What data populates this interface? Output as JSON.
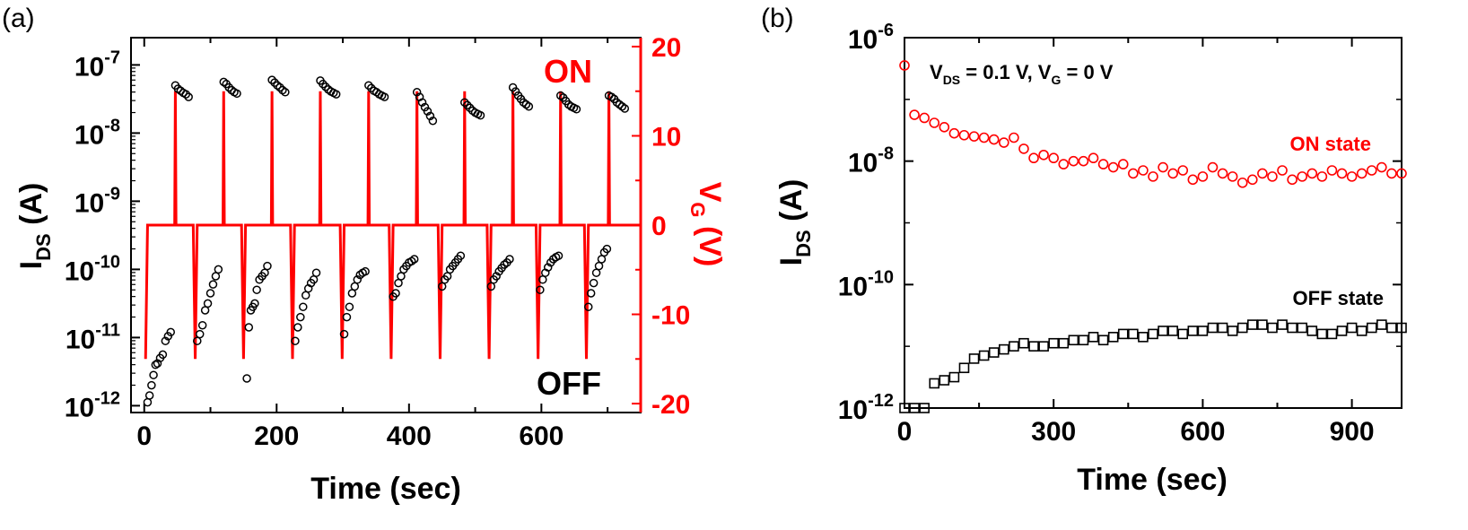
{
  "colors": {
    "on": "#ff0000",
    "off": "#000000",
    "axis": "#000000",
    "vg": "#ff0000"
  },
  "chart_data": [
    {
      "type": "scatter",
      "panel_label": "(a)",
      "xlabel": "Time (sec)",
      "ylabel": "I",
      "ylabel_sub": "DS",
      "ylabel_unit": " (A)",
      "y2label": "V",
      "y2label_sub": "G",
      "y2label_unit": " (V)",
      "xlim": [
        -20,
        750
      ],
      "ylim_log10": [
        -12.1,
        -6.6
      ],
      "y_scale": "log",
      "y2lim": [
        -21,
        21
      ],
      "xticks": [
        0,
        200,
        400,
        600
      ],
      "xtick_labels": [
        "0",
        "200",
        "400",
        "600"
      ],
      "yticks_exp": [
        -7,
        -8,
        -9,
        -10,
        -11,
        -12
      ],
      "ytick_base": "10",
      "ytick_exp_labels": [
        "-7",
        "-8",
        "-9",
        "-10",
        "-11",
        "-12"
      ],
      "y2ticks": [
        20,
        10,
        0,
        -10,
        -20
      ],
      "y2tick_labels": [
        "20",
        "10",
        "0",
        "-10",
        "-20"
      ],
      "annotations": {
        "on": "ON",
        "off": "OFF"
      },
      "cycle_starts": [
        0,
        75,
        148,
        222,
        297,
        371,
        445,
        519,
        593,
        666
      ],
      "on_times": [
        47,
        120,
        193,
        266,
        339,
        412,
        484,
        557,
        629,
        702
      ],
      "vg_levels": {
        "low": -15,
        "rest": 0,
        "high": 15
      },
      "on_series": [
        {
          "t": [
            47,
            51,
            55,
            59,
            63,
            67
          ],
          "log_i": [
            -7.3,
            -7.35,
            -7.38,
            -7.41,
            -7.43,
            -7.47
          ]
        },
        {
          "t": [
            120,
            124,
            128,
            132,
            136,
            140
          ],
          "log_i": [
            -7.25,
            -7.28,
            -7.33,
            -7.37,
            -7.4,
            -7.42
          ]
        },
        {
          "t": [
            193,
            197,
            201,
            205,
            209,
            213
          ],
          "log_i": [
            -7.22,
            -7.26,
            -7.3,
            -7.33,
            -7.37,
            -7.4
          ]
        },
        {
          "t": [
            266,
            270,
            274,
            278,
            282,
            286,
            290
          ],
          "log_i": [
            -7.23,
            -7.28,
            -7.32,
            -7.36,
            -7.39,
            -7.41,
            -7.43
          ]
        },
        {
          "t": [
            339,
            343,
            347,
            351,
            355,
            359,
            363
          ],
          "log_i": [
            -7.3,
            -7.34,
            -7.38,
            -7.4,
            -7.43,
            -7.45,
            -7.47
          ]
        },
        {
          "t": [
            412,
            416,
            420,
            424,
            428,
            432,
            436
          ],
          "log_i": [
            -7.4,
            -7.47,
            -7.55,
            -7.62,
            -7.68,
            -7.75,
            -7.82
          ]
        },
        {
          "t": [
            484,
            488,
            492,
            496,
            500,
            504,
            508
          ],
          "log_i": [
            -7.55,
            -7.59,
            -7.63,
            -7.67,
            -7.7,
            -7.72,
            -7.74
          ]
        },
        {
          "t": [
            557,
            561,
            565,
            569,
            573,
            577,
            581
          ],
          "log_i": [
            -7.33,
            -7.39,
            -7.45,
            -7.5,
            -7.55,
            -7.58,
            -7.61
          ]
        },
        {
          "t": [
            629,
            633,
            637,
            641,
            645,
            649,
            653
          ],
          "log_i": [
            -7.45,
            -7.48,
            -7.53,
            -7.58,
            -7.61,
            -7.63,
            -7.65
          ]
        },
        {
          "t": [
            702,
            706,
            710,
            714,
            718,
            722,
            726
          ],
          "log_i": [
            -7.45,
            -7.47,
            -7.5,
            -7.55,
            -7.58,
            -7.61,
            -7.64
          ]
        }
      ],
      "off_series": [
        {
          "t": [
            5,
            8,
            11,
            14,
            17,
            20,
            24,
            28,
            32,
            36,
            40
          ],
          "log_i": [
            -11.95,
            -11.85,
            -11.7,
            -11.55,
            -11.4,
            -11.38,
            -11.3,
            -11.25,
            -11.05,
            -10.98,
            -10.92
          ]
        },
        {
          "t": [
            80,
            84,
            88,
            92,
            96,
            100,
            104,
            108,
            112
          ],
          "log_i": [
            -11.05,
            -10.95,
            -10.82,
            -10.6,
            -10.5,
            -10.35,
            -10.22,
            -10.1,
            -10.0
          ]
        },
        {
          "t": [
            155,
            158,
            161,
            164,
            167,
            170,
            174,
            178,
            182,
            186
          ],
          "log_i": [
            -11.6,
            -10.85,
            -10.6,
            -10.55,
            -10.5,
            -10.3,
            -10.15,
            -10.1,
            -10.05,
            -9.95
          ]
        },
        {
          "t": [
            228,
            232,
            236,
            240,
            244,
            248,
            252,
            256,
            260
          ],
          "log_i": [
            -11.05,
            -10.85,
            -10.7,
            -10.55,
            -10.38,
            -10.28,
            -10.2,
            -10.15,
            -10.05
          ]
        },
        {
          "t": [
            302,
            306,
            310,
            314,
            318,
            322,
            326,
            330,
            334
          ],
          "log_i": [
            -10.95,
            -10.7,
            -10.55,
            -10.35,
            -10.25,
            -10.15,
            -10.08,
            -10.05,
            -10.03
          ]
        },
        {
          "t": [
            376,
            380,
            384,
            388,
            392,
            396,
            400,
            404,
            408
          ],
          "log_i": [
            -10.4,
            -10.35,
            -10.2,
            -10.1,
            -10.0,
            -9.95,
            -9.9,
            -9.88,
            -9.85
          ]
        },
        {
          "t": [
            450,
            454,
            458,
            462,
            466,
            470,
            474,
            478
          ],
          "log_i": [
            -10.25,
            -10.15,
            -10.1,
            -10.0,
            -9.95,
            -9.9,
            -9.85,
            -9.8
          ]
        },
        {
          "t": [
            524,
            528,
            532,
            536,
            540,
            544,
            548,
            552
          ],
          "log_i": [
            -10.25,
            -10.15,
            -10.1,
            -10.03,
            -9.98,
            -9.93,
            -9.9,
            -9.85
          ]
        },
        {
          "t": [
            598,
            602,
            606,
            610,
            614,
            618,
            622,
            626
          ],
          "log_i": [
            -10.3,
            -10.15,
            -10.05,
            -9.97,
            -9.9,
            -9.85,
            -9.82,
            -9.8
          ]
        },
        {
          "t": [
            671,
            675,
            679,
            683,
            687,
            691,
            695,
            699
          ],
          "log_i": [
            -10.55,
            -10.35,
            -10.2,
            -10.05,
            -9.95,
            -9.85,
            -9.75,
            -9.7
          ]
        }
      ]
    },
    {
      "type": "scatter",
      "panel_label": "(b)",
      "xlabel": "Time (sec)",
      "ylabel": "I",
      "ylabel_sub": "DS",
      "ylabel_unit": " (A)",
      "xlim": [
        0,
        1000
      ],
      "ylim_log10": [
        -12,
        -6
      ],
      "y_scale": "log",
      "xticks": [
        0,
        300,
        600,
        900
      ],
      "xtick_labels": [
        "0",
        "300",
        "600",
        "900"
      ],
      "yticks_exp": [
        -6,
        -8,
        -10,
        -12
      ],
      "ytick_base": "10",
      "ytick_exp_labels": [
        "-6",
        "-8",
        "-10",
        "-12"
      ],
      "condition": {
        "v1": "V",
        "v1_sub": "DS",
        "v1_rest": " = 0.1 V, ",
        "v2": "V",
        "v2_sub": "G",
        "v2_rest": " = 0 V"
      },
      "series": [
        {
          "name": "ON state",
          "x": [
            0,
            20,
            40,
            60,
            80,
            100,
            120,
            140,
            160,
            180,
            200,
            220,
            240,
            260,
            280,
            300,
            320,
            340,
            360,
            380,
            400,
            420,
            440,
            460,
            480,
            500,
            520,
            540,
            560,
            580,
            600,
            620,
            640,
            660,
            680,
            700,
            720,
            740,
            760,
            780,
            800,
            820,
            840,
            860,
            880,
            900,
            920,
            940,
            960,
            980,
            1000
          ],
          "log_i": [
            -6.45,
            -7.25,
            -7.3,
            -7.38,
            -7.45,
            -7.55,
            -7.58,
            -7.6,
            -7.62,
            -7.65,
            -7.7,
            -7.62,
            -7.8,
            -7.95,
            -7.9,
            -7.95,
            -8.05,
            -8.0,
            -8.0,
            -7.95,
            -8.05,
            -8.1,
            -8.05,
            -8.2,
            -8.15,
            -8.25,
            -8.1,
            -8.2,
            -8.15,
            -8.3,
            -8.25,
            -8.1,
            -8.2,
            -8.25,
            -8.35,
            -8.3,
            -8.2,
            -8.25,
            -8.15,
            -8.3,
            -8.25,
            -8.2,
            -8.25,
            -8.15,
            -8.2,
            -8.25,
            -8.2,
            -8.15,
            -8.1,
            -8.2,
            -8.2
          ]
        },
        {
          "name": "OFF state",
          "x": [
            0,
            20,
            40,
            60,
            80,
            100,
            120,
            140,
            160,
            180,
            200,
            220,
            240,
            260,
            280,
            300,
            320,
            340,
            360,
            380,
            400,
            420,
            440,
            460,
            480,
            500,
            520,
            540,
            560,
            580,
            600,
            620,
            640,
            660,
            680,
            700,
            720,
            740,
            760,
            780,
            800,
            820,
            840,
            860,
            880,
            900,
            920,
            940,
            960,
            980,
            1000
          ],
          "log_i": [
            -12.0,
            -12.0,
            -12.0,
            -11.6,
            -11.55,
            -11.5,
            -11.35,
            -11.2,
            -11.15,
            -11.1,
            -11.05,
            -11.0,
            -10.95,
            -11.0,
            -11.0,
            -10.95,
            -10.95,
            -10.9,
            -10.9,
            -10.85,
            -10.9,
            -10.85,
            -10.8,
            -10.8,
            -10.85,
            -10.8,
            -10.75,
            -10.75,
            -10.8,
            -10.75,
            -10.75,
            -10.7,
            -10.7,
            -10.75,
            -10.7,
            -10.65,
            -10.65,
            -10.7,
            -10.65,
            -10.7,
            -10.7,
            -10.75,
            -10.8,
            -10.8,
            -10.75,
            -10.7,
            -10.75,
            -10.7,
            -10.65,
            -10.7,
            -10.7
          ]
        }
      ]
    }
  ]
}
